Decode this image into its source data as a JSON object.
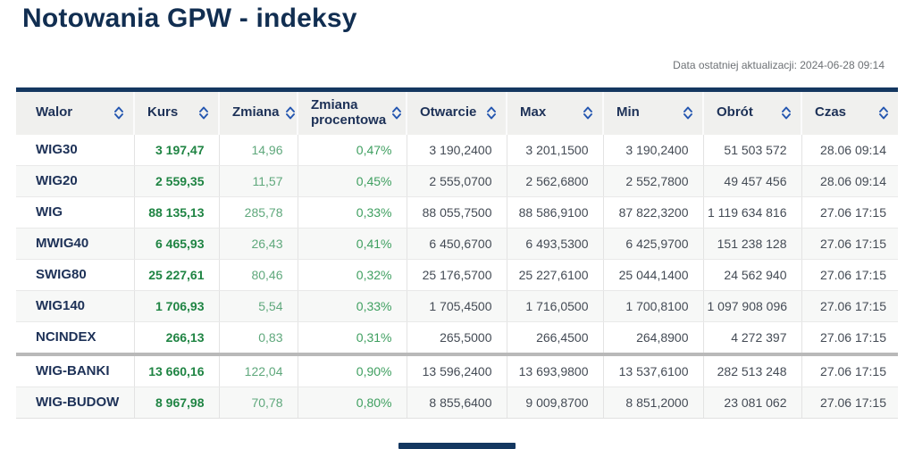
{
  "page": {
    "title": "Notowania GPW - indeksy",
    "last_update": "Data ostatniej aktualizacji: 2024-06-28 09:14"
  },
  "colors": {
    "navy": "#143760",
    "title_navy": "#112e51",
    "header_text": "#1d3157",
    "sort_blue": "#2456b0",
    "green_strong": "#1f8443",
    "green_change": "#5fa87c",
    "green_pct": "#3f9f60",
    "cell_text": "#444b55",
    "muted_text": "#6d7175",
    "header_bg": "#f0f0ee",
    "row_alt_bg": "#f7f8f7",
    "grid_line": "#e3e3e3",
    "group_divider": "#b9b9b9"
  },
  "table": {
    "columns": [
      {
        "field": "walor",
        "label": "Walor",
        "sortable": true
      },
      {
        "field": "kurs",
        "label": "Kurs",
        "sortable": true
      },
      {
        "field": "zmiana",
        "label": "Zmiana",
        "sortable": true
      },
      {
        "field": "proc",
        "label": "Zmiana procentowa",
        "sortable": true
      },
      {
        "field": "otwarcie",
        "label": "Otwarcie",
        "sortable": true
      },
      {
        "field": "max",
        "label": "Max",
        "sortable": true
      },
      {
        "field": "min",
        "label": "Min",
        "sortable": true
      },
      {
        "field": "obrot",
        "label": "Obrót",
        "sortable": true
      },
      {
        "field": "czas",
        "label": "Czas",
        "sortable": true
      }
    ],
    "rows": [
      {
        "group_start": false,
        "cells": [
          "WIG30",
          "3 197,47",
          "14,96",
          "0,47%",
          "3 190,2400",
          "3 201,1500",
          "3 190,2400",
          "51 503 572",
          "28.06 09:14"
        ]
      },
      {
        "group_start": false,
        "cells": [
          "WIG20",
          "2 559,35",
          "11,57",
          "0,45%",
          "2 555,0700",
          "2 562,6800",
          "2 552,7800",
          "49 457 456",
          "28.06 09:14"
        ]
      },
      {
        "group_start": false,
        "cells": [
          "WIG",
          "88 135,13",
          "285,78",
          "0,33%",
          "88 055,7500",
          "88 586,9100",
          "87 822,3200",
          "1 119 634 816",
          "27.06 17:15"
        ]
      },
      {
        "group_start": false,
        "cells": [
          "MWIG40",
          "6 465,93",
          "26,43",
          "0,41%",
          "6 450,6700",
          "6 493,5300",
          "6 425,9700",
          "151 238 128",
          "27.06 17:15"
        ]
      },
      {
        "group_start": false,
        "cells": [
          "SWIG80",
          "25 227,61",
          "80,46",
          "0,32%",
          "25 176,5700",
          "25 227,6100",
          "25 044,1400",
          "24 562 940",
          "27.06 17:15"
        ]
      },
      {
        "group_start": false,
        "cells": [
          "WIG140",
          "1 706,93",
          "5,54",
          "0,33%",
          "1 705,4500",
          "1 716,0500",
          "1 700,8100",
          "1 097 908 096",
          "27.06 17:15"
        ]
      },
      {
        "group_start": false,
        "cells": [
          "NCINDEX",
          "266,13",
          "0,83",
          "0,31%",
          "265,5000",
          "266,4500",
          "264,8900",
          "4 272 397",
          "27.06 17:15"
        ]
      },
      {
        "group_start": true,
        "cells": [
          "WIG-BANKI",
          "13 660,16",
          "122,04",
          "0,90%",
          "13 596,2400",
          "13 693,9800",
          "13 537,6100",
          "282 513 248",
          "27.06 17:15"
        ]
      },
      {
        "group_start": false,
        "cells": [
          "WIG-BUDOW",
          "8 967,98",
          "70,78",
          "0,80%",
          "8 855,6400",
          "9 009,8700",
          "8 851,2000",
          "23 081 062",
          "27.06 17:15"
        ]
      }
    ]
  }
}
